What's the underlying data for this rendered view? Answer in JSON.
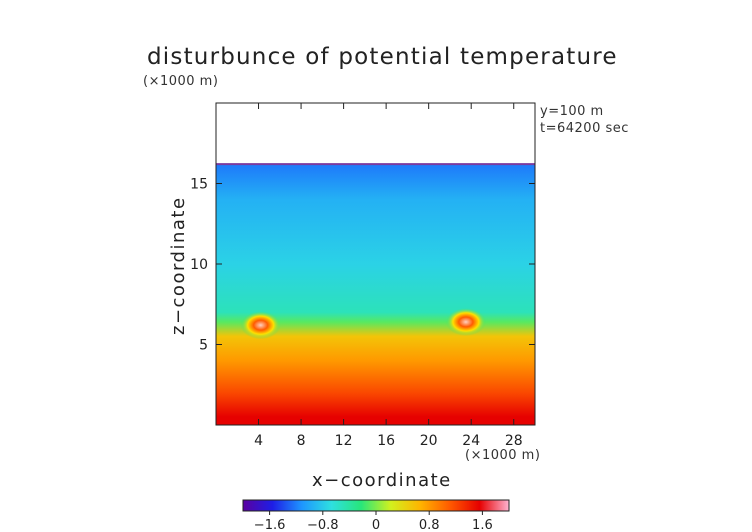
{
  "chart_data": {
    "type": "heatmap",
    "title": "disturbunce of potential temperature",
    "y_unit_label": "(×1000 m)",
    "x_unit_label": "(×1000 m)",
    "annotations": [
      "y=100 m",
      "t=64200 sec"
    ],
    "xlabel": "x−coordinate",
    "ylabel": "z−coordinate",
    "xlim": [
      0,
      30
    ],
    "ylim": [
      0,
      20
    ],
    "x_ticks": [
      4,
      8,
      12,
      16,
      20,
      24,
      28
    ],
    "x_tick_labels": [
      "4",
      "8",
      "12",
      "16",
      "20",
      "24",
      "28"
    ],
    "y_ticks": [
      5,
      10,
      15
    ],
    "y_tick_labels": [
      "5",
      "10",
      "15"
    ],
    "data_top_z": 16.2,
    "color_scale": {
      "min": -2.0,
      "max": 2.0,
      "ticks": [
        -1.6,
        -0.8,
        0,
        0.8,
        1.6
      ],
      "tick_labels": [
        "−1.6",
        "−0.8",
        "0",
        "0.8",
        "1.6"
      ],
      "colors": [
        "#5a00a0",
        "#1e1ee6",
        "#1e96ff",
        "#2ee0e0",
        "#28e67a",
        "#d2f01e",
        "#ffb400",
        "#ff5a00",
        "#e60000",
        "#ffb4d2"
      ]
    },
    "field_profile": [
      {
        "z": 0.5,
        "value": 1.55
      },
      {
        "z": 2.0,
        "value": 1.2
      },
      {
        "z": 4.0,
        "value": 0.8
      },
      {
        "z": 5.5,
        "value": 0.55
      },
      {
        "z": 6.4,
        "value": -0.1
      },
      {
        "z": 7.0,
        "value": -0.5
      },
      {
        "z": 10.0,
        "value": -0.75
      },
      {
        "z": 14.0,
        "value": -0.95
      },
      {
        "z": 16.0,
        "value": -1.2
      }
    ],
    "hot_spots": [
      {
        "x": 4.2,
        "z": 6.2,
        "value": 1.5
      },
      {
        "x": 23.5,
        "z": 6.4,
        "value": 1.5
      }
    ]
  }
}
